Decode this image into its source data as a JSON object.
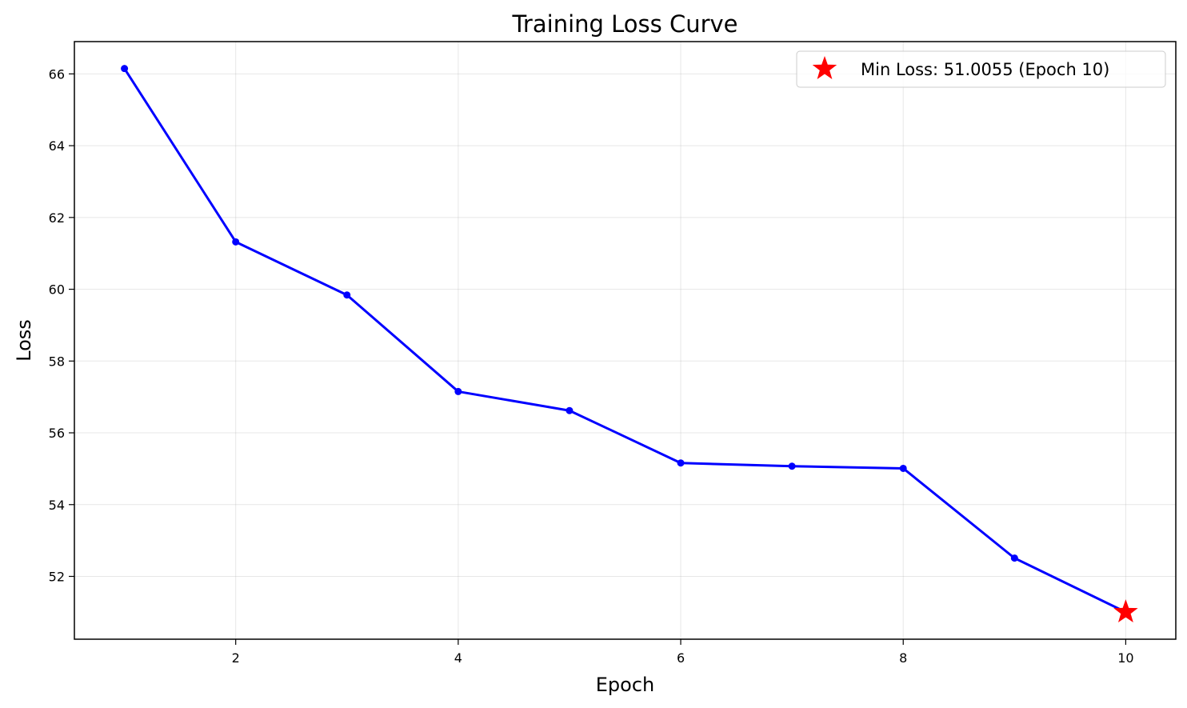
{
  "chart_data": {
    "type": "line",
    "title": "Training Loss Curve",
    "xlabel": "Epoch",
    "ylabel": "Loss",
    "xlim": [
      0.55,
      10.45
    ],
    "ylim": [
      50.25,
      66.9
    ],
    "x_ticks": [
      2,
      4,
      6,
      8,
      10
    ],
    "y_ticks": [
      52,
      54,
      56,
      58,
      60,
      62,
      64,
      66
    ],
    "grid": true,
    "legend_position": "top-right",
    "series": [
      {
        "x": [
          1,
          2,
          3,
          4,
          5,
          6,
          7,
          8,
          9,
          10
        ],
        "values": [
          66.15,
          61.32,
          59.84,
          57.15,
          56.62,
          55.16,
          55.07,
          55.01,
          52.51,
          51.0055
        ],
        "color": "#0000ff",
        "marker": "circle"
      }
    ],
    "highlight": {
      "label": "Min Loss: 51.0055 (Epoch 10)",
      "x": 10,
      "y": 51.0055,
      "color": "#ff0000",
      "marker": "star"
    }
  }
}
